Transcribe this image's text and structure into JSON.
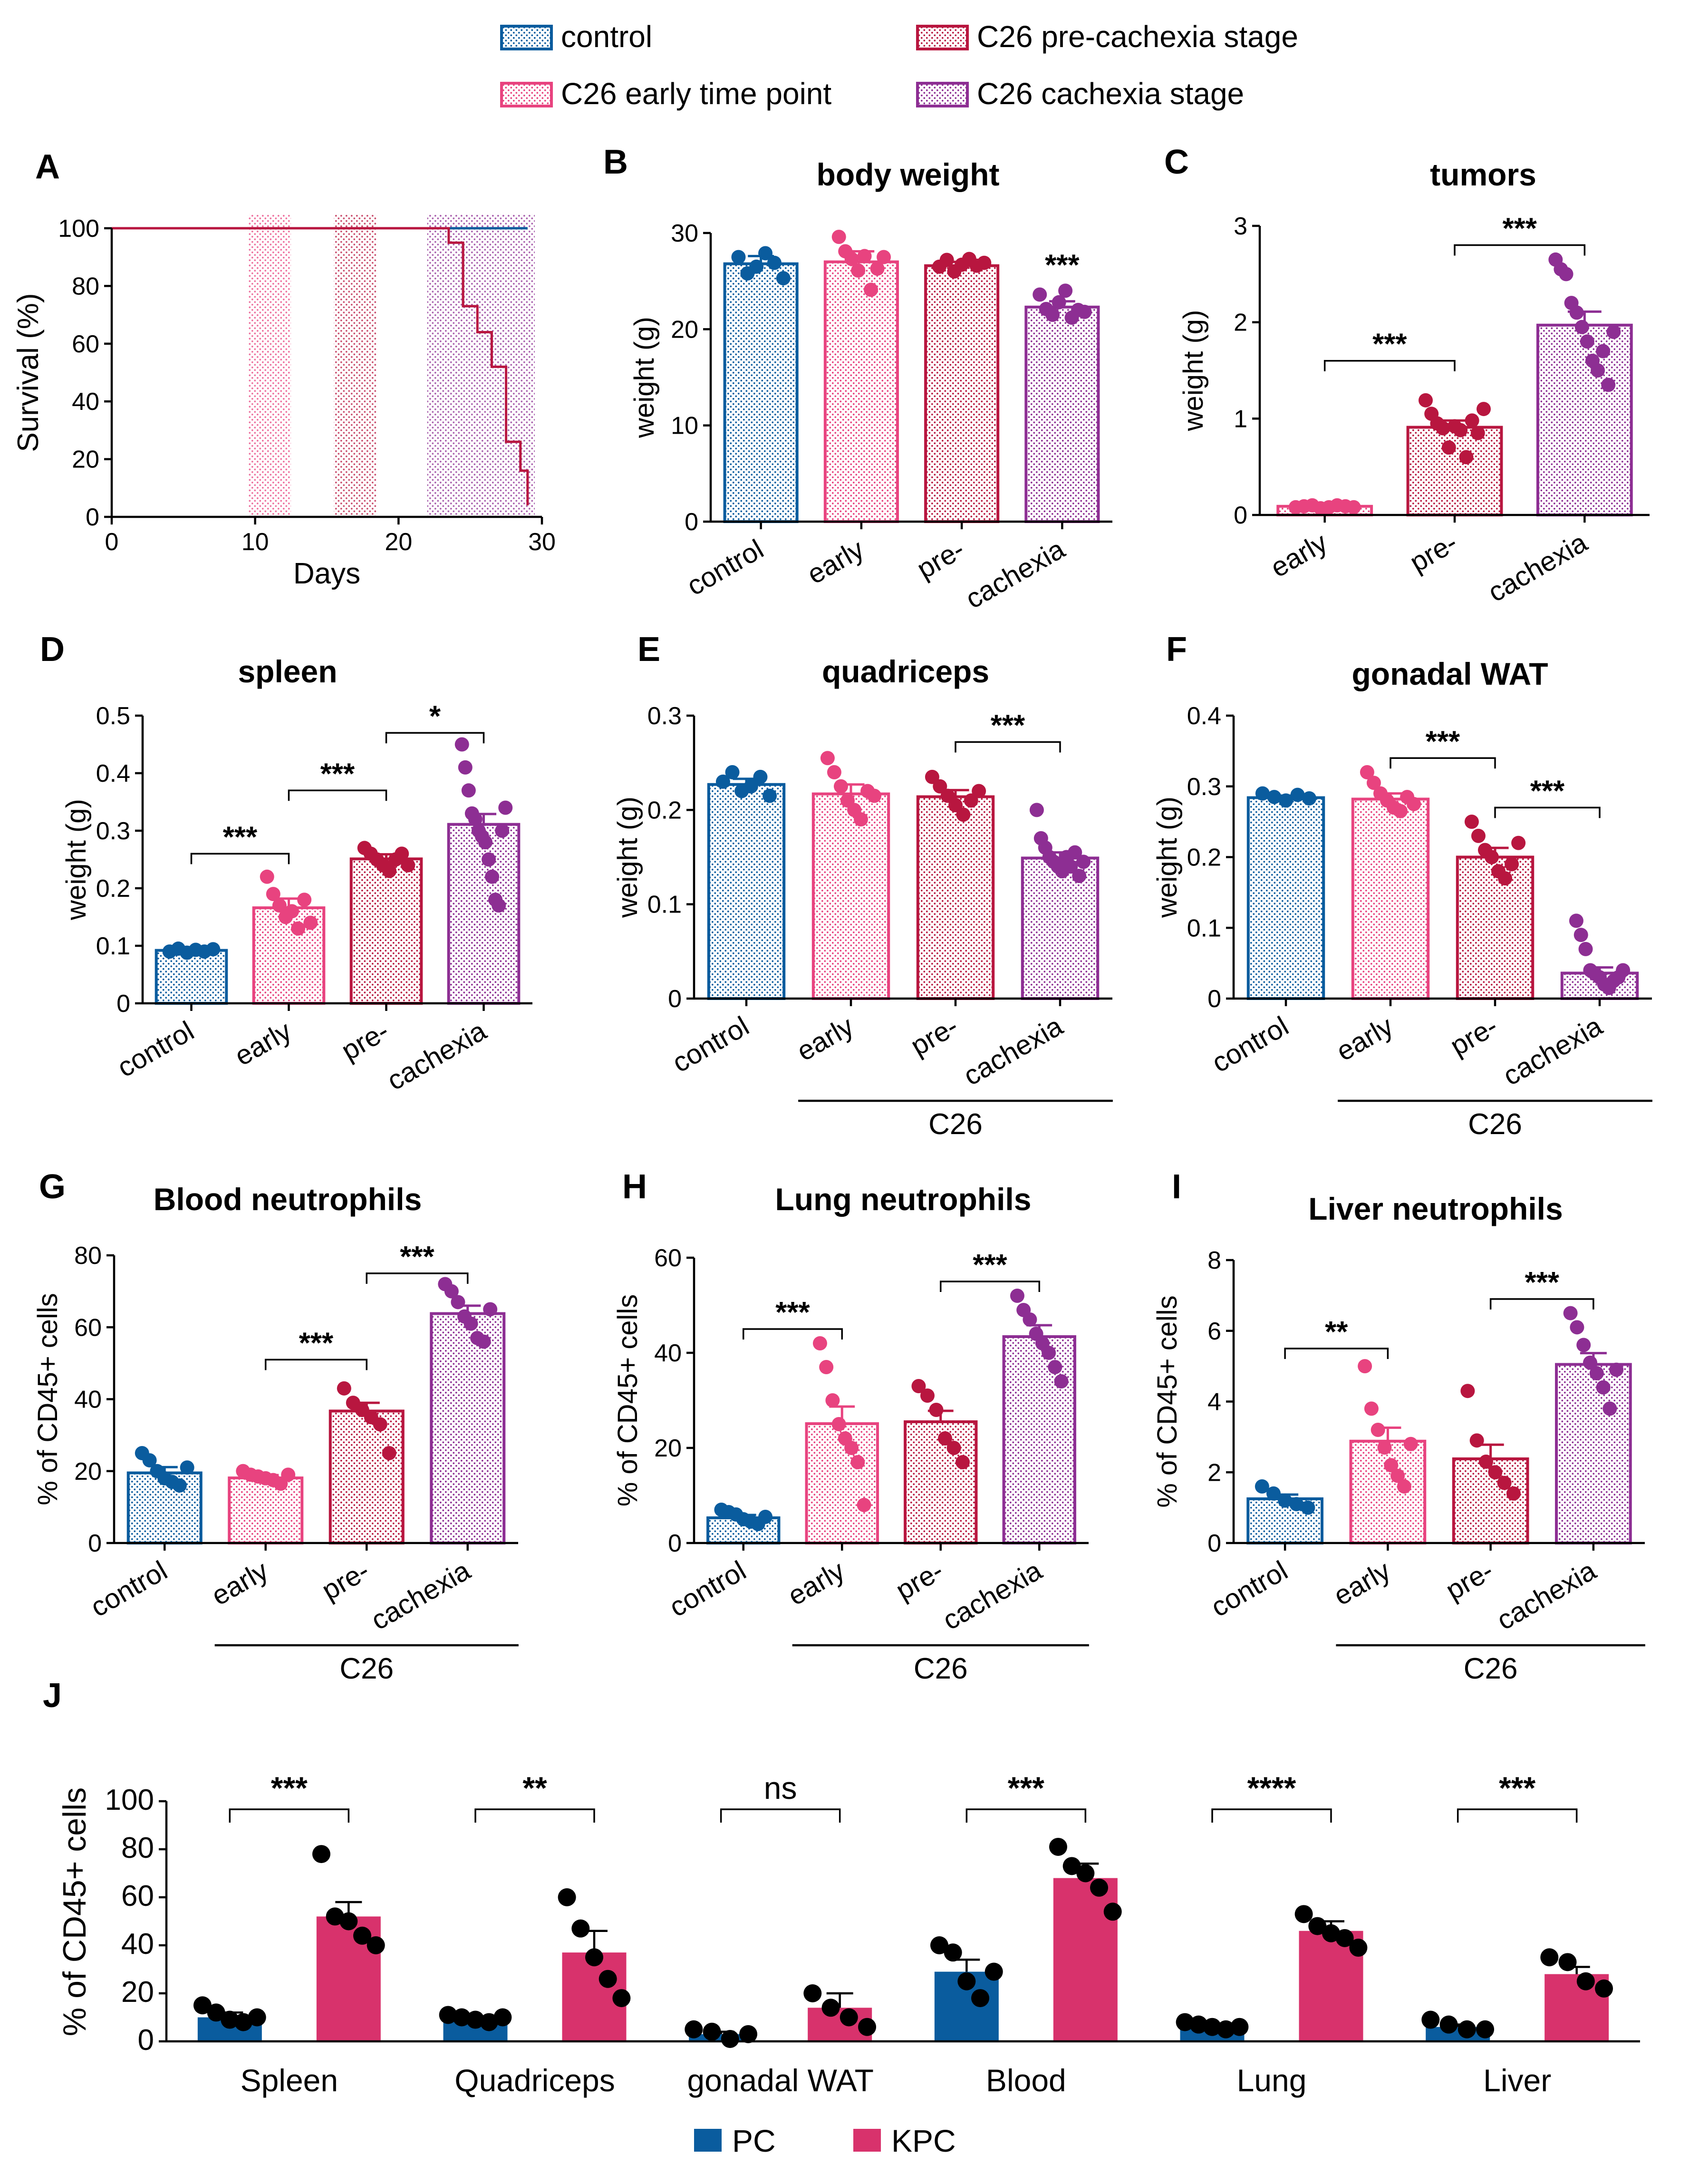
{
  "colors": {
    "control": "#0a5c9e",
    "early": "#e8437f",
    "pre": "#b8163f",
    "cachexia": "#8d2e93",
    "pc": "#0a5c9e",
    "kpc": "#d8326c"
  },
  "legend": {
    "entries": [
      {
        "key": "control",
        "label": "control"
      },
      {
        "key": "early",
        "label": "C26 early time point"
      },
      {
        "key": "pre",
        "label": "C26 pre-cachexia stage"
      },
      {
        "key": "cachexia",
        "label": "C26 cachexia stage"
      }
    ]
  },
  "legend_j": [
    {
      "key": "pc",
      "label": "PC"
    },
    {
      "key": "kpc",
      "label": "KPC"
    }
  ],
  "chart_data": [
    {
      "id": "A",
      "panel_letter": "A",
      "type": "line",
      "title": "",
      "xlabel": "Days",
      "ylabel": "Survival (%)",
      "xlim": [
        0,
        30
      ],
      "ylim": [
        0,
        100
      ],
      "xticks": [
        0,
        10,
        20,
        30
      ],
      "yticks": [
        0,
        20,
        40,
        60,
        80,
        100
      ],
      "shaded_ranges": [
        {
          "group": "early",
          "x": [
            9.5,
            12.5
          ]
        },
        {
          "group": "pre",
          "x": [
            15.5,
            18.5
          ]
        },
        {
          "group": "cachexia",
          "x": [
            22,
            29.5
          ]
        }
      ],
      "series": [
        {
          "name": "control",
          "color_key": "control",
          "x": [
            0,
            29
          ],
          "y": [
            100,
            100
          ]
        },
        {
          "name": "C26",
          "color_key": "pre",
          "x": [
            0,
            23.5,
            24.5,
            25.5,
            26.5,
            27.5,
            28.5,
            29
          ],
          "y": [
            100,
            95,
            73,
            64,
            52,
            26,
            16,
            4
          ]
        }
      ]
    },
    {
      "id": "B",
      "panel_letter": "B",
      "type": "bar",
      "title": "body weight",
      "ylabel": "weight (g)",
      "ylim": [
        0,
        30
      ],
      "yticks": [
        0,
        10,
        20,
        30
      ],
      "categories": [
        "control",
        "early",
        "pre-",
        "cachexia"
      ],
      "color_keys": [
        "control",
        "early",
        "pre",
        "cachexia"
      ],
      "values": [
        26.8,
        27.0,
        26.6,
        22.3
      ],
      "errors": [
        0.8,
        1.1,
        0.4,
        0.6
      ],
      "points": [
        [
          27.5,
          25.8,
          26.5,
          27.9,
          26.9,
          25.3
        ],
        [
          29.6,
          28.1,
          27.3,
          26.1,
          27.6,
          24.1,
          26.3,
          27.5
        ],
        [
          26.5,
          27.2,
          26.0,
          26.7,
          27.3,
          26.6,
          26.9
        ],
        [
          23.6,
          22.1,
          21.5,
          22.8,
          24.0,
          21.2,
          22.0,
          21.8
        ]
      ],
      "sig_brackets": [],
      "sig_labels_over_bar": [
        {
          "index": 3,
          "label": "***"
        }
      ]
    },
    {
      "id": "C",
      "panel_letter": "C",
      "type": "bar",
      "title": "tumors",
      "ylabel": "weight (g)",
      "ylim": [
        0,
        3
      ],
      "yticks": [
        0,
        1,
        2,
        3
      ],
      "categories": [
        "early",
        "pre-",
        "cachexia"
      ],
      "color_keys": [
        "early",
        "pre",
        "cachexia"
      ],
      "values": [
        0.09,
        0.91,
        1.97
      ],
      "errors": [
        0.01,
        0.07,
        0.14
      ],
      "points": [
        [
          0.08,
          0.09,
          0.1,
          0.07,
          0.08,
          0.1,
          0.09,
          0.08
        ],
        [
          1.19,
          1.05,
          0.95,
          0.9,
          0.7,
          0.92,
          0.88,
          0.6,
          0.98,
          0.85,
          1.1
        ],
        [
          2.65,
          2.55,
          2.5,
          2.2,
          2.1,
          1.95,
          1.8,
          1.6,
          1.5,
          1.7,
          1.35,
          1.9
        ]
      ],
      "sig_brackets": [
        {
          "from": 0,
          "to": 1,
          "label": "***",
          "level": 1.6
        },
        {
          "from": 1,
          "to": 2,
          "label": "***",
          "level": 2.8
        }
      ],
      "sig_labels_over_bar": []
    },
    {
      "id": "D",
      "panel_letter": "D",
      "type": "bar",
      "title": "spleen",
      "ylabel": "weight (g)",
      "ylim": [
        0,
        0.5
      ],
      "yticks": [
        0,
        0.1,
        0.2,
        0.3,
        0.4,
        0.5
      ],
      "categories": [
        "control",
        "early",
        "pre-",
        "cachexia"
      ],
      "color_keys": [
        "control",
        "early",
        "pre",
        "cachexia"
      ],
      "values": [
        0.092,
        0.166,
        0.251,
        0.311
      ],
      "errors": [
        0.004,
        0.016,
        0.008,
        0.018
      ],
      "points": [
        [
          0.09,
          0.095,
          0.088,
          0.093,
          0.09,
          0.094
        ],
        [
          0.22,
          0.19,
          0.17,
          0.15,
          0.16,
          0.13,
          0.18,
          0.14
        ],
        [
          0.27,
          0.26,
          0.25,
          0.24,
          0.23,
          0.25,
          0.26,
          0.24
        ],
        [
          0.45,
          0.41,
          0.37,
          0.33,
          0.32,
          0.3,
          0.29,
          0.28,
          0.25,
          0.22,
          0.18,
          0.17,
          0.3,
          0.34
        ]
      ],
      "sig_brackets": [
        {
          "from": 0,
          "to": 1,
          "label": "***",
          "level": 0.26
        },
        {
          "from": 1,
          "to": 2,
          "label": "***",
          "level": 0.37
        },
        {
          "from": 2,
          "to": 3,
          "label": "*",
          "level": 0.47
        }
      ],
      "sig_labels_over_bar": []
    },
    {
      "id": "E",
      "panel_letter": "E",
      "type": "bar",
      "title": "quadriceps",
      "ylabel": "weight (g)",
      "ylim": [
        0,
        0.3
      ],
      "yticks": [
        0,
        0.1,
        0.2,
        0.3
      ],
      "categories": [
        "control",
        "early",
        "pre-",
        "cachexia"
      ],
      "color_keys": [
        "control",
        "early",
        "pre",
        "cachexia"
      ],
      "values": [
        0.227,
        0.217,
        0.214,
        0.149
      ],
      "errors": [
        0.006,
        0.01,
        0.007,
        0.006
      ],
      "points": [
        [
          0.23,
          0.24,
          0.22,
          0.225,
          0.235,
          0.215
        ],
        [
          0.255,
          0.24,
          0.225,
          0.21,
          0.2,
          0.19,
          0.22,
          0.215
        ],
        [
          0.235,
          0.225,
          0.215,
          0.205,
          0.195,
          0.21,
          0.22
        ],
        [
          0.2,
          0.17,
          0.16,
          0.15,
          0.145,
          0.14,
          0.135,
          0.15,
          0.14,
          0.155,
          0.13,
          0.145
        ]
      ],
      "sig_brackets": [
        {
          "from": 2,
          "to": 3,
          "label": "***",
          "level": 0.272
        }
      ],
      "sig_labels_over_bar": [],
      "group_label": {
        "text": "C26",
        "from": 1,
        "to": 3
      }
    },
    {
      "id": "F",
      "panel_letter": "F",
      "type": "bar",
      "title": "gonadal WAT",
      "ylabel": "weight (g)",
      "ylim": [
        0,
        0.4
      ],
      "yticks": [
        0,
        0.1,
        0.2,
        0.3,
        0.4
      ],
      "categories": [
        "control",
        "early",
        "pre-",
        "cachexia"
      ],
      "color_keys": [
        "control",
        "early",
        "pre",
        "cachexia"
      ],
      "values": [
        0.284,
        0.282,
        0.2,
        0.036
      ],
      "errors": [
        0.003,
        0.008,
        0.013,
        0.008
      ],
      "points": [
        [
          0.29,
          0.285,
          0.28,
          0.288,
          0.283
        ],
        [
          0.32,
          0.305,
          0.29,
          0.28,
          0.27,
          0.265,
          0.285,
          0.275
        ],
        [
          0.25,
          0.23,
          0.21,
          0.2,
          0.18,
          0.17,
          0.19,
          0.22
        ],
        [
          0.11,
          0.09,
          0.07,
          0.04,
          0.035,
          0.03,
          0.02,
          0.015,
          0.025,
          0.03,
          0.04
        ]
      ],
      "sig_brackets": [
        {
          "from": 1,
          "to": 2,
          "label": "***",
          "level": 0.34
        },
        {
          "from": 2,
          "to": 3,
          "label": "***",
          "level": 0.27
        }
      ],
      "sig_labels_over_bar": [],
      "group_label": {
        "text": "C26",
        "from": 1,
        "to": 3
      }
    },
    {
      "id": "G",
      "panel_letter": "G",
      "type": "bar",
      "title": "Blood neutrophils",
      "ylabel": "% of CD45+ cells",
      "ylim": [
        0,
        80
      ],
      "yticks": [
        0,
        20,
        40,
        60,
        80
      ],
      "categories": [
        "control",
        "early",
        "pre-",
        "cachexia"
      ],
      "color_keys": [
        "control",
        "early",
        "pre",
        "cachexia"
      ],
      "values": [
        19.5,
        18.1,
        36.7,
        63.8
      ],
      "errors": [
        1.6,
        0.8,
        2.3,
        2.2
      ],
      "points": [
        [
          25,
          23,
          20,
          18,
          17,
          16,
          21
        ],
        [
          20,
          19,
          18.5,
          18,
          17.5,
          16.5,
          19
        ],
        [
          43,
          39,
          37,
          35,
          33,
          25
        ],
        [
          72,
          70,
          67,
          63,
          61,
          57,
          56,
          65
        ]
      ],
      "sig_brackets": [
        {
          "from": 1,
          "to": 2,
          "label": "***",
          "level": 51
        },
        {
          "from": 2,
          "to": 3,
          "label": "***",
          "level": 75
        }
      ],
      "sig_labels_over_bar": [],
      "group_label": {
        "text": "C26",
        "from": 1,
        "to": 3
      }
    },
    {
      "id": "H",
      "panel_letter": "H",
      "type": "bar",
      "title": "Lung neutrophils",
      "ylabel": "% of CD45+ cells",
      "ylim": [
        0,
        60
      ],
      "yticks": [
        0,
        20,
        40,
        60
      ],
      "categories": [
        "control",
        "early",
        "pre-",
        "cachexia"
      ],
      "color_keys": [
        "control",
        "early",
        "pre",
        "cachexia"
      ],
      "values": [
        5.3,
        25.1,
        25.5,
        43.4
      ],
      "errors": [
        0.6,
        3.6,
        2.3,
        2.4
      ],
      "points": [
        [
          7,
          6.5,
          6,
          5,
          4.5,
          4,
          5.5
        ],
        [
          42,
          37,
          30,
          25,
          22,
          20,
          17,
          8
        ],
        [
          33,
          31,
          28,
          22,
          20,
          17
        ],
        [
          52,
          49,
          47,
          44,
          42,
          40,
          37,
          34
        ]
      ],
      "sig_brackets": [
        {
          "from": 0,
          "to": 1,
          "label": "***",
          "level": 45
        },
        {
          "from": 2,
          "to": 3,
          "label": "***",
          "level": 55
        }
      ],
      "sig_labels_over_bar": [],
      "group_label": {
        "text": "C26",
        "from": 1,
        "to": 3
      }
    },
    {
      "id": "I",
      "panel_letter": "I",
      "type": "bar",
      "title": "Liver neutrophils",
      "ylabel": "% of CD45+ cells",
      "ylim": [
        0,
        8
      ],
      "yticks": [
        0,
        2,
        4,
        6,
        8
      ],
      "categories": [
        "control",
        "early",
        "pre-",
        "cachexia"
      ],
      "color_keys": [
        "control",
        "early",
        "pre",
        "cachexia"
      ],
      "values": [
        1.25,
        2.88,
        2.38,
        5.05
      ],
      "errors": [
        0.12,
        0.38,
        0.4,
        0.32
      ],
      "points": [
        [
          1.6,
          1.4,
          1.2,
          1.1,
          1.0
        ],
        [
          5.0,
          3.8,
          3.2,
          2.7,
          2.2,
          1.9,
          1.6,
          2.8
        ],
        [
          4.3,
          2.9,
          2.3,
          2.0,
          1.7,
          1.4
        ],
        [
          6.5,
          6.1,
          5.6,
          5.1,
          4.8,
          4.4,
          3.8,
          4.9
        ]
      ],
      "sig_brackets": [
        {
          "from": 0,
          "to": 1,
          "label": "**",
          "level": 5.5
        },
        {
          "from": 2,
          "to": 3,
          "label": "***",
          "level": 6.9
        }
      ],
      "sig_labels_over_bar": [],
      "group_label": {
        "text": "C26",
        "from": 1,
        "to": 3
      }
    },
    {
      "id": "J",
      "panel_letter": "J",
      "type": "bar",
      "title": "",
      "ylabel": "% of CD45+ cells",
      "ylim": [
        0,
        100
      ],
      "yticks": [
        0,
        20,
        40,
        60,
        80,
        100
      ],
      "categories": [
        "Spleen",
        "Quadriceps",
        "gonadal WAT",
        "Blood",
        "Lung",
        "Liver"
      ],
      "series": [
        {
          "name": "PC",
          "color_key": "pc",
          "values": [
            10,
            9,
            3,
            29,
            6,
            6
          ],
          "errors": [
            2,
            1,
            1,
            5,
            1,
            1
          ],
          "points": [
            [
              15,
              12,
              9,
              8,
              10
            ],
            [
              11,
              10,
              9,
              8,
              10
            ],
            [
              5,
              4,
              1,
              3
            ],
            [
              40,
              37,
              25,
              18,
              29
            ],
            [
              8,
              7,
              6,
              5,
              6
            ],
            [
              9,
              7,
              5,
              5
            ]
          ]
        },
        {
          "name": "KPC",
          "color_key": "kpc",
          "values": [
            52,
            37,
            14,
            68,
            46,
            28
          ],
          "errors": [
            6,
            9,
            6,
            6,
            4,
            3
          ],
          "points": [
            [
              78,
              52,
              50,
              44,
              40
            ],
            [
              60,
              47,
              35,
              26,
              18
            ],
            [
              20,
              14,
              10,
              6
            ],
            [
              81,
              73,
              70,
              64,
              54
            ],
            [
              53,
              48,
              45,
              43,
              39
            ],
            [
              35,
              33,
              25,
              22
            ]
          ]
        }
      ],
      "sig_brackets": [
        {
          "category": 0,
          "label": "***"
        },
        {
          "category": 1,
          "label": "**"
        },
        {
          "category": 2,
          "label": "ns"
        },
        {
          "category": 3,
          "label": "***"
        },
        {
          "category": 4,
          "label": "****"
        },
        {
          "category": 5,
          "label": "***"
        }
      ]
    }
  ]
}
